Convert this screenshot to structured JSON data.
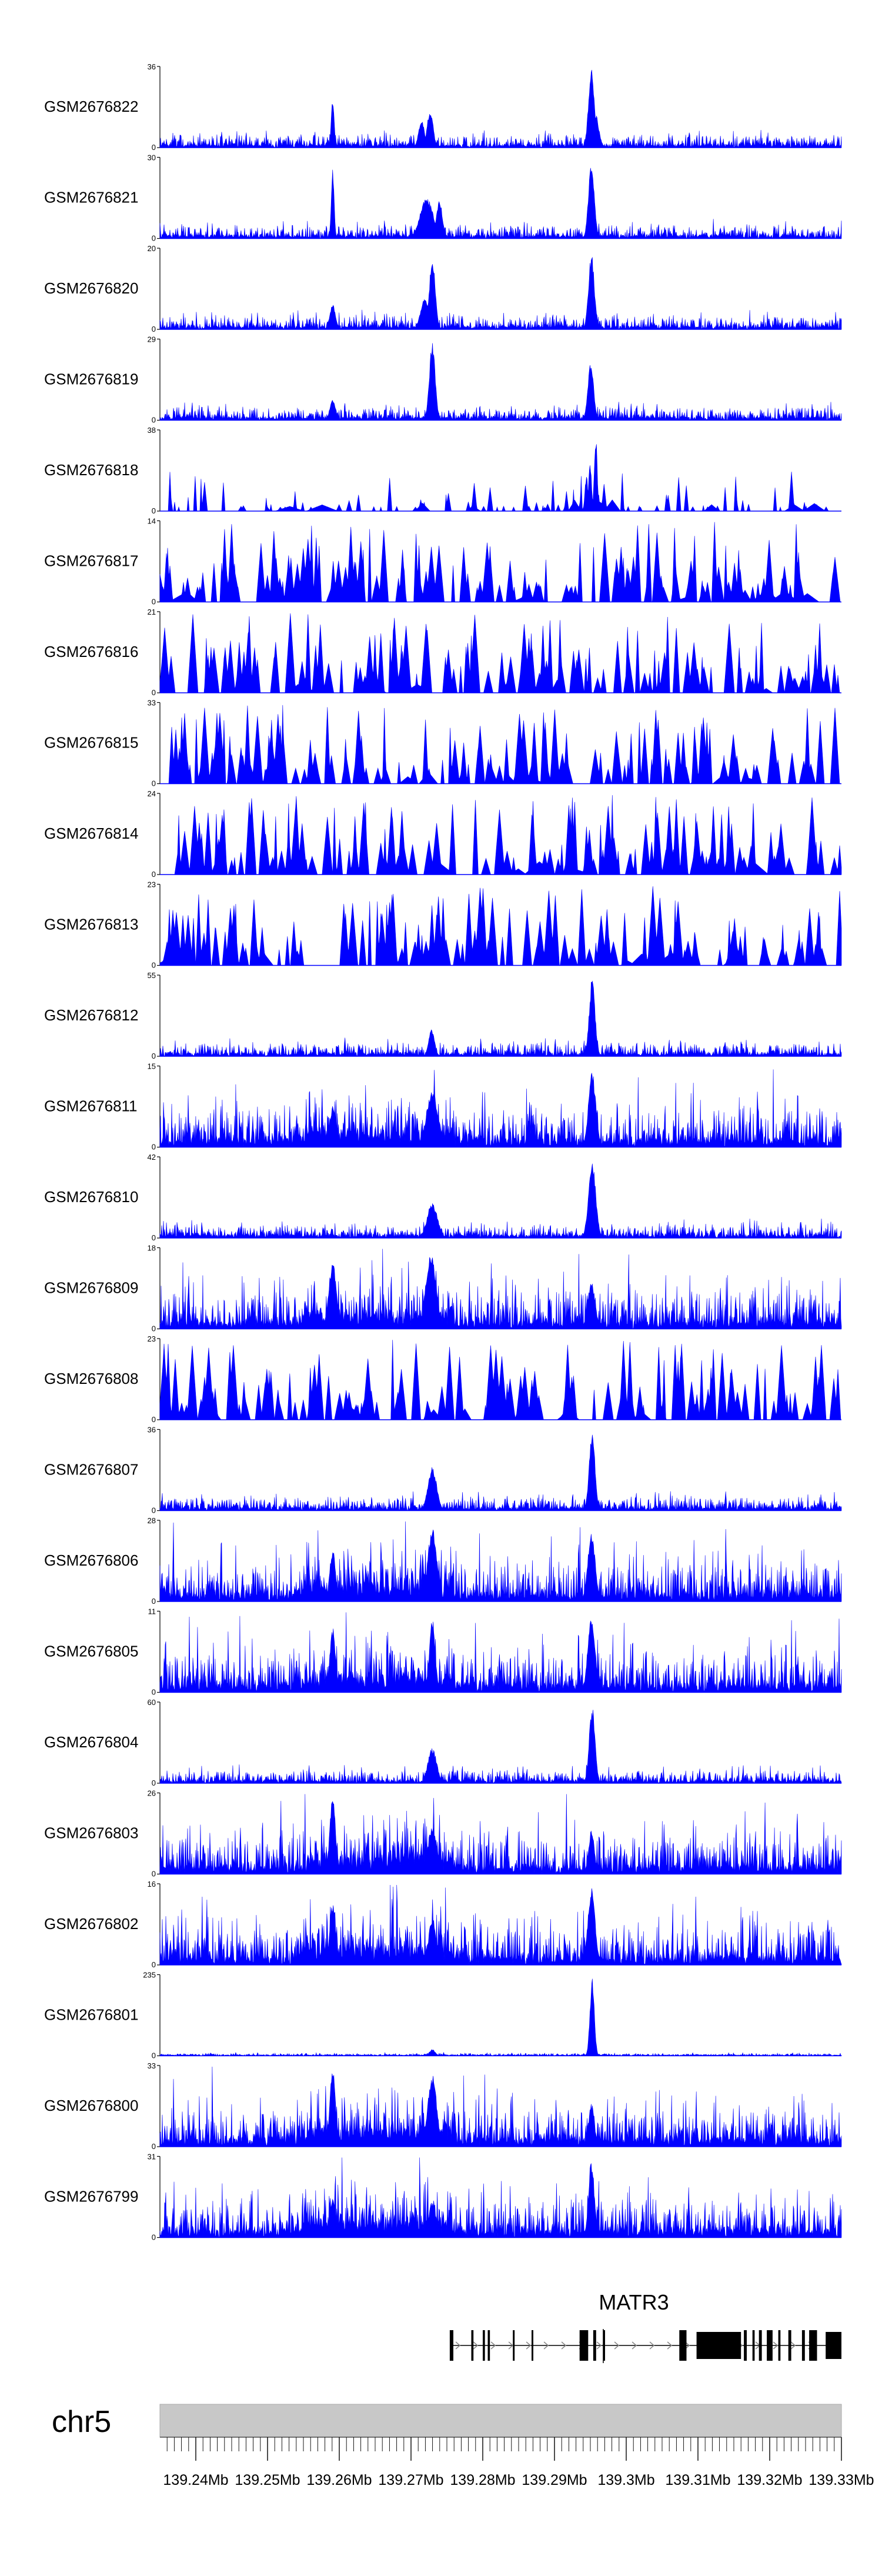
{
  "chart_data": {
    "type": "area",
    "title": "",
    "xlabel": "",
    "ylabel": "",
    "chromosome": "chr5",
    "xlim": [
      139.235,
      139.33
    ],
    "x_unit": "Mb",
    "x_ticks": [
      139.24,
      139.25,
      139.26,
      139.27,
      139.28,
      139.29,
      139.3,
      139.31,
      139.32,
      139.33
    ],
    "x_tick_labels": [
      "139.24Mb",
      "139.25Mb",
      "139.26Mb",
      "139.27Mb",
      "139.28Mb",
      "139.29Mb",
      "139.3Mb",
      "139.31Mb",
      "139.32Mb",
      "139.33Mb"
    ],
    "tracks": [
      {
        "name": "GSM2676822",
        "ymax_label": "36",
        "ymin_label": "0",
        "ymax": 36,
        "style": "clustered",
        "seed": 822,
        "peaks": [
          {
            "x": 139.2952,
            "h": 1.0,
            "w": 0.0004
          },
          {
            "x": 139.2957,
            "h": 0.45,
            "w": 0.0005
          },
          {
            "x": 139.2591,
            "h": 0.64,
            "w": 0.0002
          },
          {
            "x": 139.2727,
            "h": 0.48,
            "w": 0.0004
          },
          {
            "x": 139.2715,
            "h": 0.35,
            "w": 0.0004
          }
        ]
      },
      {
        "name": "GSM2676821",
        "ymax_label": "30",
        "ymin_label": "0",
        "ymax": 30,
        "style": "clustered",
        "seed": 821,
        "peaks": [
          {
            "x": 139.2952,
            "h": 0.98,
            "w": 0.0004
          },
          {
            "x": 139.2591,
            "h": 0.87,
            "w": 0.0002
          },
          {
            "x": 139.2722,
            "h": 0.52,
            "w": 0.0009
          },
          {
            "x": 139.274,
            "h": 0.5,
            "w": 0.0004
          }
        ]
      },
      {
        "name": "GSM2676820",
        "ymax_label": "20",
        "ymin_label": "0",
        "ymax": 20,
        "style": "clustered",
        "seed": 820,
        "peaks": [
          {
            "x": 139.2952,
            "h": 0.95,
            "w": 0.0004
          },
          {
            "x": 139.273,
            "h": 0.92,
            "w": 0.0004
          },
          {
            "x": 139.2591,
            "h": 0.32,
            "w": 0.0004
          },
          {
            "x": 139.272,
            "h": 0.4,
            "w": 0.0006
          }
        ]
      },
      {
        "name": "GSM2676819",
        "ymax_label": "29",
        "ymin_label": "0",
        "ymax": 29,
        "style": "clustered",
        "seed": 819,
        "peaks": [
          {
            "x": 139.273,
            "h": 0.98,
            "w": 0.0004
          },
          {
            "x": 139.2951,
            "h": 0.72,
            "w": 0.0004
          },
          {
            "x": 139.2591,
            "h": 0.25,
            "w": 0.0004
          }
        ]
      },
      {
        "name": "GSM2676818",
        "ymax_label": "38",
        "ymin_label": "0",
        "ymax": 38,
        "style": "sparse",
        "seed": 818,
        "peaks": [
          {
            "x": 139.2958,
            "h": 0.96,
            "w": 0.0002
          },
          {
            "x": 139.295,
            "h": 0.62,
            "w": 0.0002
          },
          {
            "x": 139.2945,
            "h": 0.45,
            "w": 0.0002
          }
        ]
      },
      {
        "name": "GSM2676817",
        "ymax_label": "14",
        "ymin_label": "0",
        "ymax": 14,
        "style": "spiky",
        "seed": 817,
        "peaks": []
      },
      {
        "name": "GSM2676816",
        "ymax_label": "21",
        "ymin_label": "0",
        "ymax": 21,
        "style": "spiky",
        "seed": 816,
        "peaks": []
      },
      {
        "name": "GSM2676815",
        "ymax_label": "33",
        "ymin_label": "0",
        "ymax": 33,
        "style": "spiky",
        "seed": 815,
        "peaks": []
      },
      {
        "name": "GSM2676814",
        "ymax_label": "24",
        "ymin_label": "0",
        "ymax": 24,
        "style": "spiky",
        "seed": 814,
        "peaks": []
      },
      {
        "name": "GSM2676813",
        "ymax_label": "23",
        "ymin_label": "0",
        "ymax": 23,
        "style": "spiky",
        "seed": 813,
        "peaks": []
      },
      {
        "name": "GSM2676812",
        "ymax_label": "55",
        "ymin_label": "0",
        "ymax": 55,
        "style": "clustered",
        "seed": 812,
        "peaks": [
          {
            "x": 139.2953,
            "h": 0.98,
            "w": 0.0004
          },
          {
            "x": 139.2729,
            "h": 0.35,
            "w": 0.0004
          }
        ]
      },
      {
        "name": "GSM2676811",
        "ymax_label": "15",
        "ymin_label": "0",
        "ymax": 15,
        "style": "dense",
        "seed": 811,
        "peaks": [
          {
            "x": 139.2953,
            "h": 0.96,
            "w": 0.0005
          },
          {
            "x": 139.273,
            "h": 0.72,
            "w": 0.0008
          },
          {
            "x": 139.2591,
            "h": 0.5,
            "w": 0.0004
          }
        ]
      },
      {
        "name": "GSM2676810",
        "ymax_label": "42",
        "ymin_label": "0",
        "ymax": 42,
        "style": "clustered",
        "seed": 810,
        "peaks": [
          {
            "x": 139.2953,
            "h": 0.98,
            "w": 0.0005
          },
          {
            "x": 139.273,
            "h": 0.45,
            "w": 0.0007
          }
        ]
      },
      {
        "name": "GSM2676809",
        "ymax_label": "18",
        "ymin_label": "0",
        "ymax": 18,
        "style": "dense",
        "seed": 809,
        "peaks": [
          {
            "x": 139.2728,
            "h": 0.96,
            "w": 0.0007
          },
          {
            "x": 139.2591,
            "h": 0.86,
            "w": 0.0005
          },
          {
            "x": 139.2952,
            "h": 0.6,
            "w": 0.0005
          }
        ]
      },
      {
        "name": "GSM2676808",
        "ymax_label": "23",
        "ymin_label": "0",
        "ymax": 23,
        "style": "spiky",
        "seed": 808,
        "peaks": []
      },
      {
        "name": "GSM2676807",
        "ymax_label": "36",
        "ymin_label": "0",
        "ymax": 36,
        "style": "clustered",
        "seed": 807,
        "peaks": [
          {
            "x": 139.2953,
            "h": 0.98,
            "w": 0.0004
          },
          {
            "x": 139.273,
            "h": 0.55,
            "w": 0.0006
          }
        ]
      },
      {
        "name": "GSM2676806",
        "ymax_label": "28",
        "ymin_label": "0",
        "ymax": 28,
        "style": "dense",
        "seed": 806,
        "peaks": [
          {
            "x": 139.273,
            "h": 0.96,
            "w": 0.0006
          },
          {
            "x": 139.2952,
            "h": 0.9,
            "w": 0.0005
          },
          {
            "x": 139.2591,
            "h": 0.66,
            "w": 0.0004
          }
        ]
      },
      {
        "name": "GSM2676805",
        "ymax_label": "11",
        "ymin_label": "0",
        "ymax": 11,
        "style": "dense",
        "seed": 805,
        "peaks": [
          {
            "x": 139.2952,
            "h": 0.98,
            "w": 0.0005
          },
          {
            "x": 139.273,
            "h": 0.94,
            "w": 0.0004
          },
          {
            "x": 139.2591,
            "h": 0.82,
            "w": 0.0004
          }
        ]
      },
      {
        "name": "GSM2676804",
        "ymax_label": "60",
        "ymin_label": "0",
        "ymax": 60,
        "style": "clustered",
        "seed": 804,
        "peaks": [
          {
            "x": 139.2953,
            "h": 0.98,
            "w": 0.0004
          },
          {
            "x": 139.273,
            "h": 0.45,
            "w": 0.0006
          }
        ]
      },
      {
        "name": "GSM2676803",
        "ymax_label": "26",
        "ymin_label": "0",
        "ymax": 26,
        "style": "dense",
        "seed": 803,
        "peaks": [
          {
            "x": 139.2591,
            "h": 0.98,
            "w": 0.0004
          },
          {
            "x": 139.273,
            "h": 0.6,
            "w": 0.0006
          },
          {
            "x": 139.2952,
            "h": 0.55,
            "w": 0.0004
          }
        ]
      },
      {
        "name": "GSM2676802",
        "ymax_label": "16",
        "ymin_label": "0",
        "ymax": 16,
        "style": "dense",
        "seed": 802,
        "peaks": [
          {
            "x": 139.2952,
            "h": 0.97,
            "w": 0.0005
          },
          {
            "x": 139.2591,
            "h": 0.8,
            "w": 0.0004
          },
          {
            "x": 139.273,
            "h": 0.6,
            "w": 0.0005
          }
        ]
      },
      {
        "name": "GSM2676801",
        "ymax_label": "235",
        "ymin_label": "0",
        "ymax": 235,
        "style": "quiet",
        "seed": 801,
        "peaks": [
          {
            "x": 139.2953,
            "h": 0.98,
            "w": 0.0003
          },
          {
            "x": 139.273,
            "h": 0.08,
            "w": 0.0004
          }
        ]
      },
      {
        "name": "GSM2676800",
        "ymax_label": "33",
        "ymin_label": "0",
        "ymax": 33,
        "style": "dense",
        "seed": 800,
        "peaks": [
          {
            "x": 139.2591,
            "h": 0.98,
            "w": 0.0004
          },
          {
            "x": 139.273,
            "h": 0.93,
            "w": 0.0006
          },
          {
            "x": 139.2952,
            "h": 0.55,
            "w": 0.0004
          }
        ]
      },
      {
        "name": "GSM2676799",
        "ymax_label": "31",
        "ymin_label": "0",
        "ymax": 31,
        "style": "dense",
        "seed": 799,
        "peaks": [
          {
            "x": 139.2952,
            "h": 0.98,
            "w": 0.0004
          },
          {
            "x": 139.2591,
            "h": 0.48,
            "w": 0.0004
          },
          {
            "x": 139.273,
            "h": 0.45,
            "w": 0.0005
          }
        ]
      }
    ],
    "gene": {
      "name": "MATR3",
      "start": 139.2755,
      "end": 139.33,
      "strand": "+",
      "exons": [
        {
          "start": 139.2754,
          "end": 139.2759
        },
        {
          "start": 139.2784,
          "end": 139.2787
        },
        {
          "start": 139.28,
          "end": 139.2803
        },
        {
          "start": 139.2807,
          "end": 139.281
        },
        {
          "start": 139.2842,
          "end": 139.2844
        },
        {
          "start": 139.2868,
          "end": 139.287
        },
        {
          "start": 139.2935,
          "end": 139.2947
        },
        {
          "start": 139.2954,
          "end": 139.2958
        },
        {
          "start": 139.2968,
          "end": 139.297
        },
        {
          "start": 139.3074,
          "end": 139.3084
        },
        {
          "start": 139.3098,
          "end": 139.316
        },
        {
          "start": 139.3164,
          "end": 139.3168
        },
        {
          "start": 139.3176,
          "end": 139.3179
        },
        {
          "start": 139.3185,
          "end": 139.3189
        },
        {
          "start": 139.3196,
          "end": 139.3204
        },
        {
          "start": 139.3212,
          "end": 139.3215
        },
        {
          "start": 139.3226,
          "end": 139.323
        },
        {
          "start": 139.3245,
          "end": 139.3249
        },
        {
          "start": 139.3255,
          "end": 139.3266
        },
        {
          "start": 139.3278,
          "end": 139.33
        }
      ]
    }
  },
  "colors": {
    "signal": "#0000ff",
    "axis": "#000000",
    "ideogram": "#c8c8c8",
    "gene": "#000000",
    "intron_arrow": "#888888"
  }
}
